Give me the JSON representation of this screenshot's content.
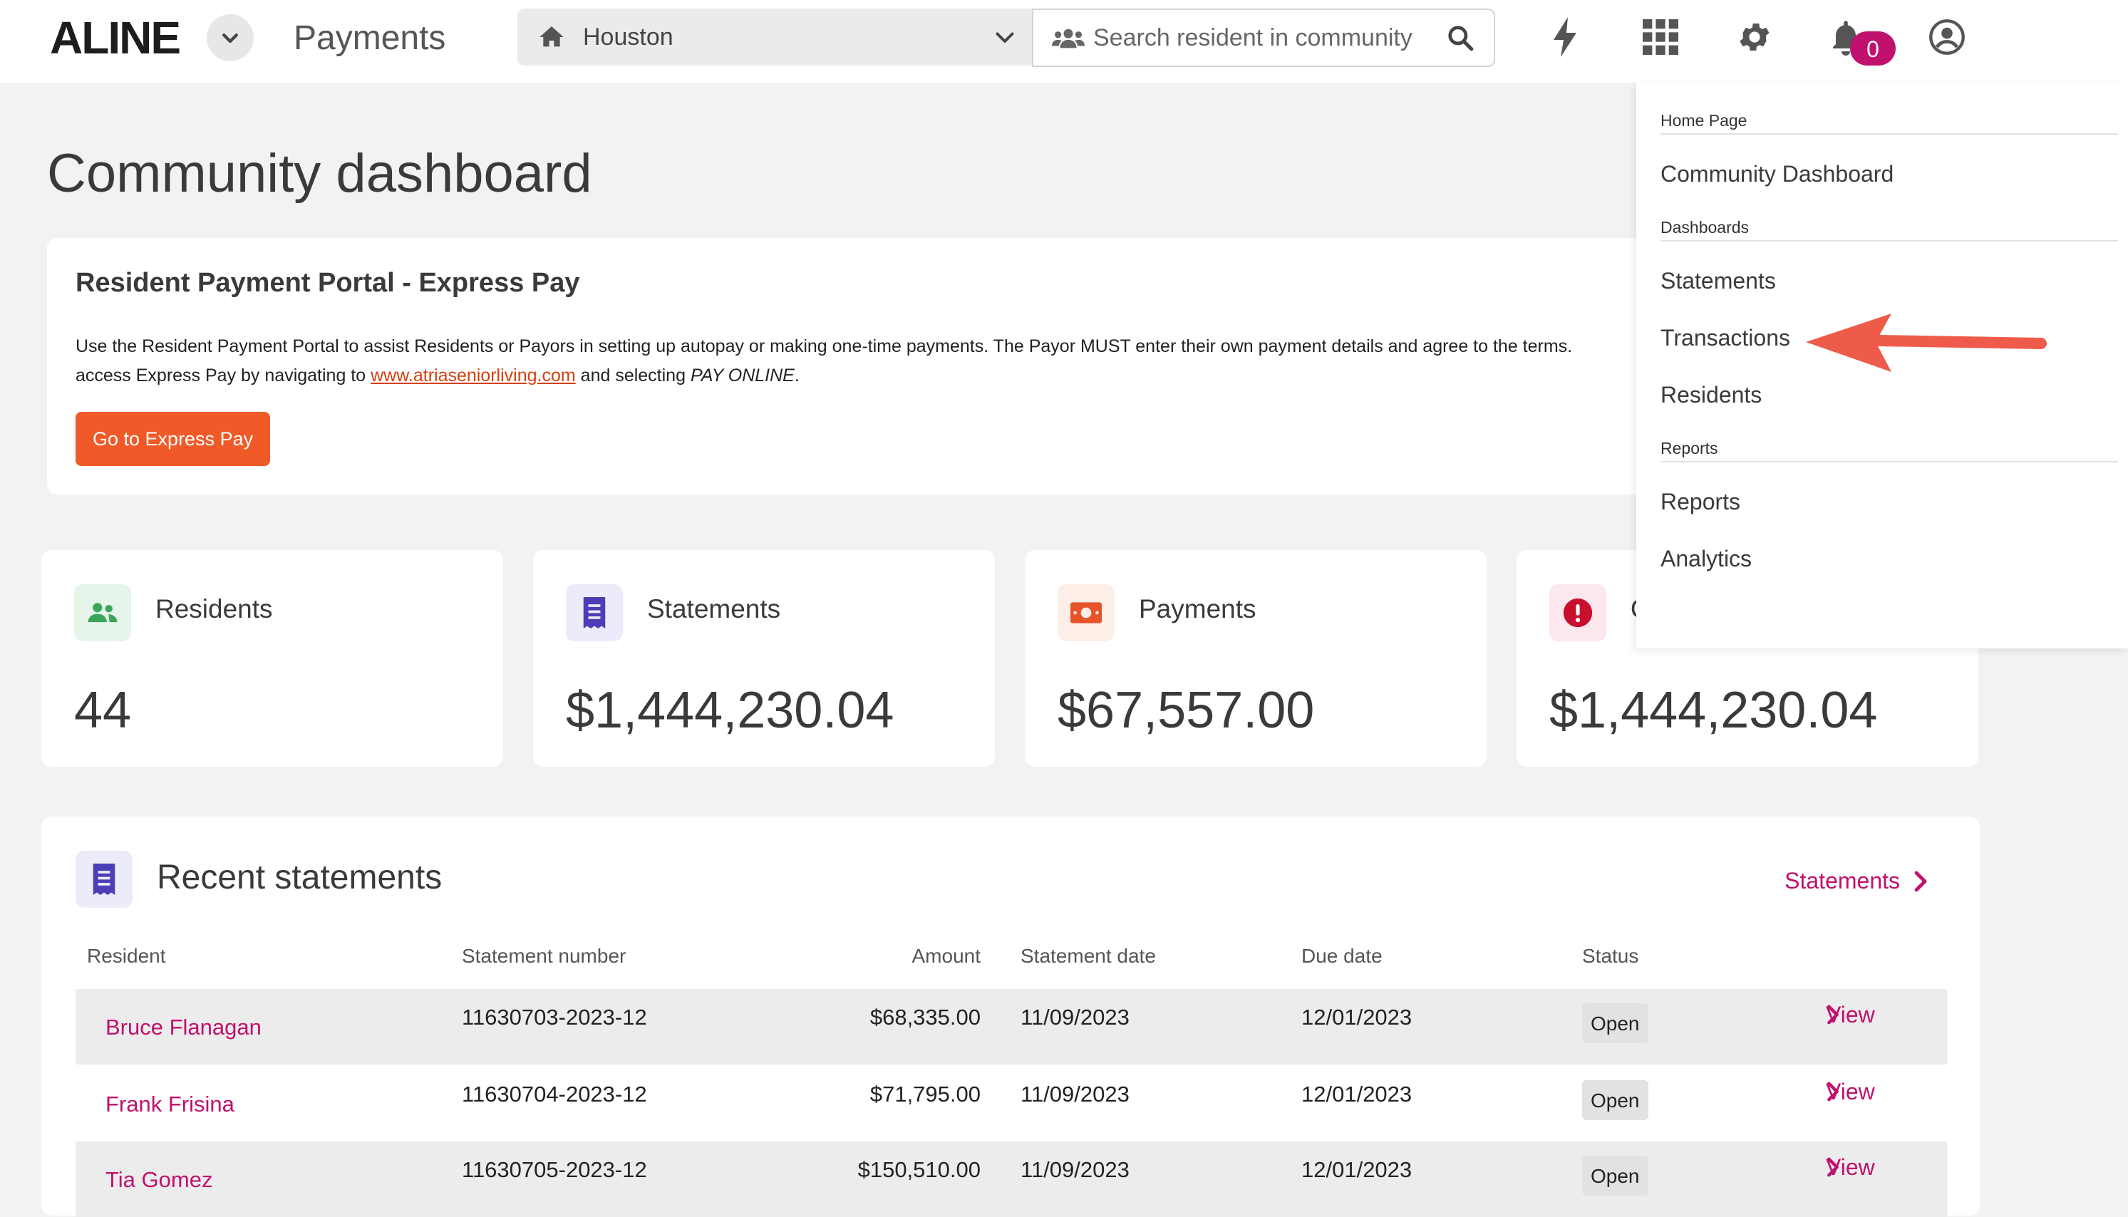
{
  "header": {
    "logo": "ALINE",
    "app_title": "Payments",
    "community": "Houston",
    "search_placeholder": "Search resident in community",
    "notification_count": "0"
  },
  "page_title": "Community dashboard",
  "express_pay": {
    "title": "Resident Payment Portal - Express Pay",
    "desc_line1": "Use the Resident Payment Portal to assist Residents or Payors in setting up autopay or making one-time payments. The Payor MUST enter their own payment details and agree to the terms.",
    "desc_prefix": "access Express Pay by navigating to ",
    "desc_link": "www.atriaseniorliving.com",
    "desc_mid": " and selecting ",
    "desc_em": "PAY ONLINE",
    "desc_end": ".",
    "button": "Go to Express Pay"
  },
  "stats": [
    {
      "label": "Residents",
      "value": "44"
    },
    {
      "label": "Statements",
      "value": "$1,444,230.04"
    },
    {
      "label": "Payments",
      "value": "$67,557.00"
    },
    {
      "label": "O",
      "value": "$1,444,230.04"
    }
  ],
  "recent": {
    "title": "Recent statements",
    "link": "Statements",
    "columns": [
      "Resident",
      "Statement number",
      "Amount",
      "Statement date",
      "Due date",
      "Status"
    ],
    "rows": [
      {
        "resident": "Bruce Flanagan",
        "number": "11630703-2023-12",
        "amount": "$68,335.00",
        "statement_date": "11/09/2023",
        "due_date": "12/01/2023",
        "status": "Open",
        "action": "View"
      },
      {
        "resident": "Frank Frisina",
        "number": "11630704-2023-12",
        "amount": "$71,795.00",
        "statement_date": "11/09/2023",
        "due_date": "12/01/2023",
        "status": "Open",
        "action": "View"
      },
      {
        "resident": "Tia Gomez",
        "number": "11630705-2023-12",
        "amount": "$150,510.00",
        "statement_date": "11/09/2023",
        "due_date": "12/01/2023",
        "status": "Open",
        "action": "View"
      }
    ]
  },
  "menu": {
    "sections": [
      {
        "label": "Home Page",
        "items": [
          "Community Dashboard"
        ]
      },
      {
        "label": "Dashboards",
        "items": [
          "Statements",
          "Transactions",
          "Residents"
        ]
      },
      {
        "label": "Reports",
        "items": [
          "Reports",
          "Analytics"
        ]
      }
    ]
  },
  "colors": {
    "accent": "#c0116e",
    "cta": "#f05a28",
    "annotation_arrow": "#ee5b4a"
  }
}
